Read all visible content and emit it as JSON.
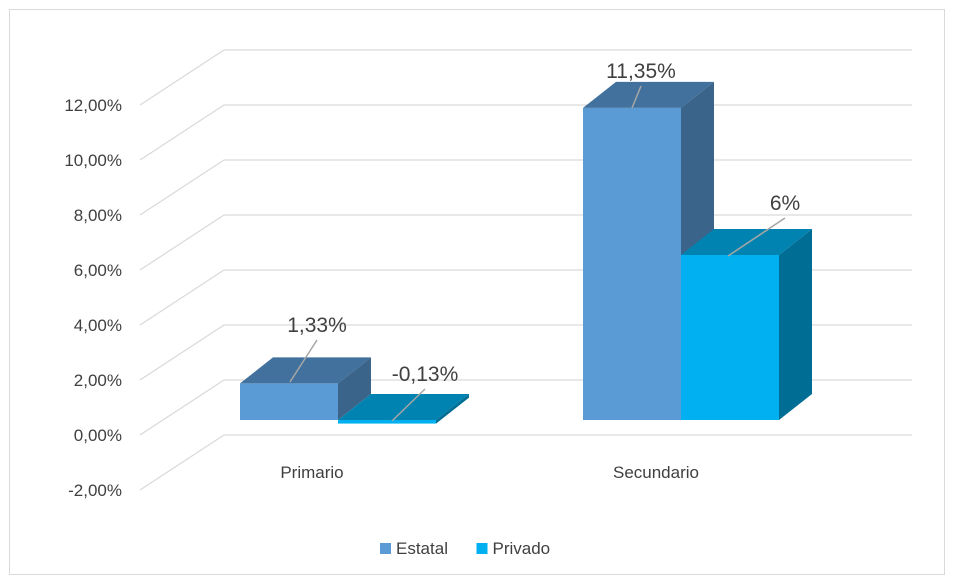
{
  "chart_data": {
    "type": "bar",
    "categories": [
      "Primario",
      "Secundario"
    ],
    "series": [
      {
        "name": "Estatal",
        "values": [
          1.33,
          11.35
        ],
        "labels": [
          "1,33%",
          "11,35%"
        ]
      },
      {
        "name": "Privado",
        "values": [
          -0.13,
          6
        ],
        "labels": [
          "-0,13%",
          "6%"
        ]
      }
    ],
    "ylim": [
      -2,
      12
    ],
    "yticks": [
      -2,
      0,
      2,
      4,
      6,
      8,
      10,
      12
    ],
    "ytick_labels": [
      "-2,00%",
      "0,00%",
      "2,00%",
      "4,00%",
      "6,00%",
      "8,00%",
      "10,00%",
      "12,00%"
    ],
    "legend_position": "bottom",
    "grid": true,
    "colors": {
      "Estatal": {
        "front": "#5b9bd5",
        "top": "#41719c",
        "side": "#3a6489"
      },
      "Privado": {
        "front": "#00b0f0",
        "top": "#0083b0",
        "side": "#006e94"
      }
    }
  }
}
